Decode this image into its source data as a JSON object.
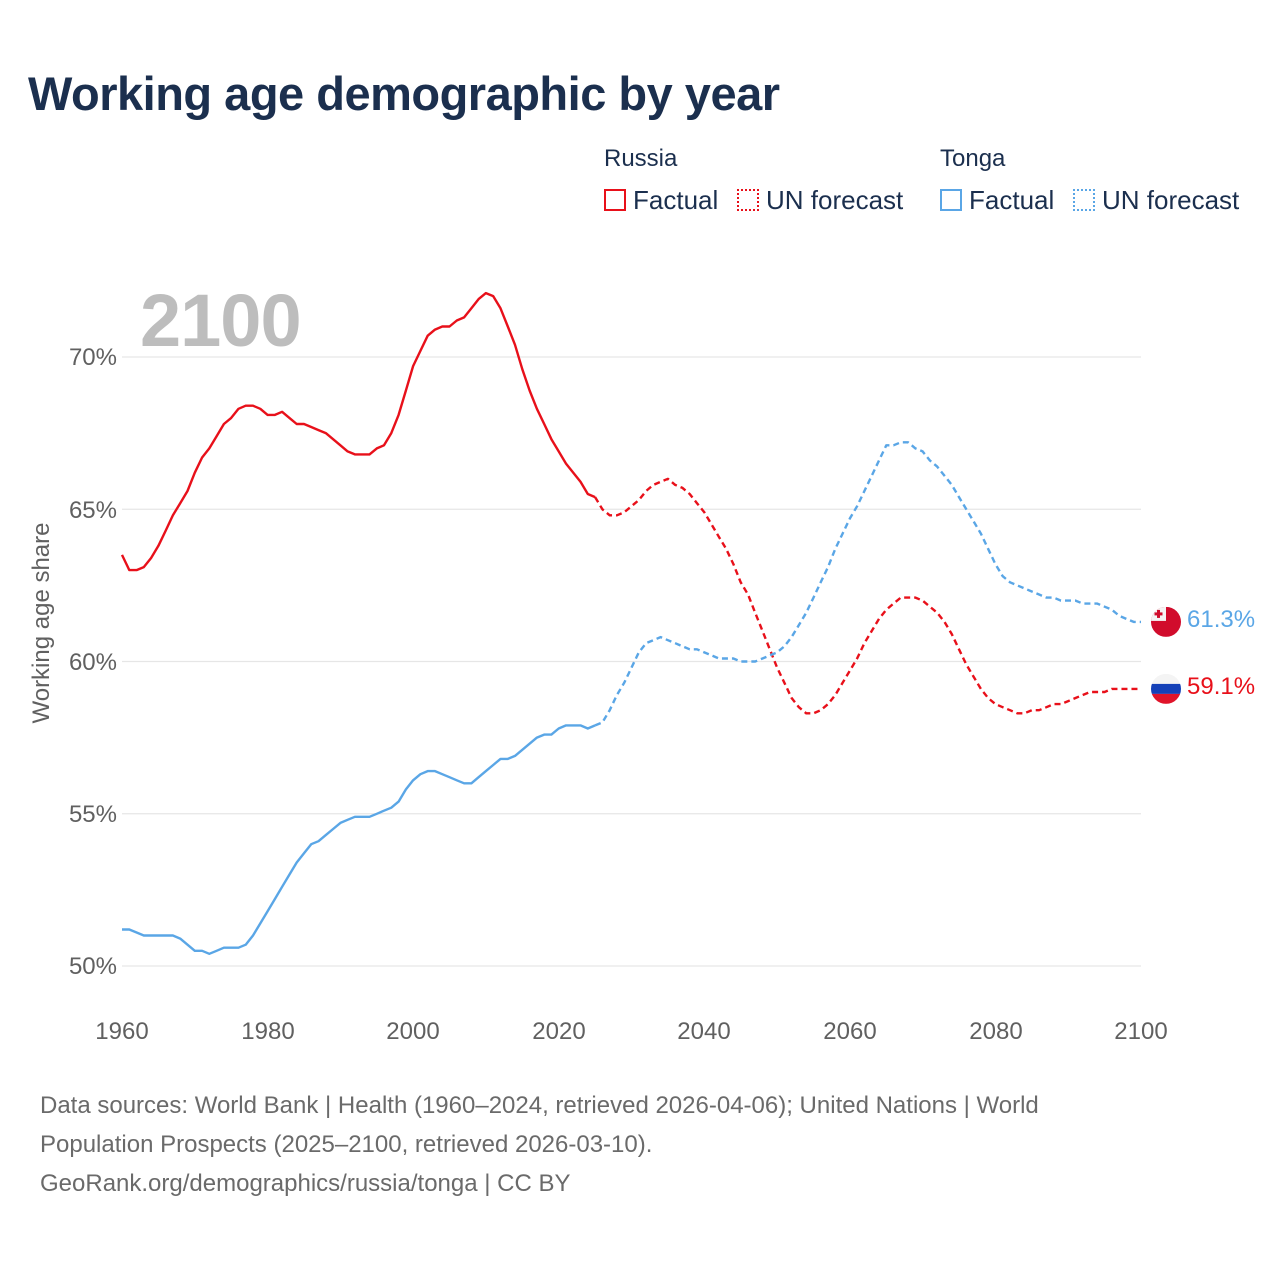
{
  "title": "Working age demographic by year",
  "legend": {
    "groups": [
      {
        "name": "Russia",
        "color": "#e8101a",
        "items": [
          "Factual",
          "UN forecast"
        ]
      },
      {
        "name": "Tonga",
        "color": "#5aa6e6",
        "items": [
          "Factual",
          "UN forecast"
        ]
      }
    ]
  },
  "year_label": "2100",
  "footer": {
    "line1": "Data sources: World Bank | Health (1960–2024, retrieved 2026-04-06); United Nations | World",
    "line2": "Population Prospects (2025–2100, retrieved 2026-03-10).",
    "line3": "GeoRank.org/demographics/russia/tonga | CC BY"
  },
  "chart_data": {
    "type": "line",
    "title": "Working age demographic by year",
    "xlabel": "",
    "ylabel": "Working age share",
    "xlim": [
      1960,
      2100
    ],
    "ylim": [
      50,
      70
    ],
    "x_ticks": [
      "1960",
      "1980",
      "2000",
      "2020",
      "2040",
      "2060",
      "2080",
      "2100"
    ],
    "y_ticks": [
      "50%",
      "55%",
      "60%",
      "65%",
      "70%"
    ],
    "forecast_start": 2025,
    "series": [
      {
        "name": "Russia",
        "color": "#e8101a",
        "end_label": "59.1%",
        "flag": "russia-flag-icon",
        "points": [
          [
            1960,
            63.5
          ],
          [
            1961,
            63.0
          ],
          [
            1962,
            63.0
          ],
          [
            1963,
            63.1
          ],
          [
            1964,
            63.4
          ],
          [
            1965,
            63.8
          ],
          [
            1966,
            64.3
          ],
          [
            1967,
            64.8
          ],
          [
            1968,
            65.2
          ],
          [
            1969,
            65.6
          ],
          [
            1970,
            66.2
          ],
          [
            1971,
            66.7
          ],
          [
            1972,
            67.0
          ],
          [
            1973,
            67.4
          ],
          [
            1974,
            67.8
          ],
          [
            1975,
            68.0
          ],
          [
            1976,
            68.3
          ],
          [
            1977,
            68.4
          ],
          [
            1978,
            68.4
          ],
          [
            1979,
            68.3
          ],
          [
            1980,
            68.1
          ],
          [
            1981,
            68.1
          ],
          [
            1982,
            68.2
          ],
          [
            1983,
            68.0
          ],
          [
            1984,
            67.8
          ],
          [
            1985,
            67.8
          ],
          [
            1986,
            67.7
          ],
          [
            1987,
            67.6
          ],
          [
            1988,
            67.5
          ],
          [
            1989,
            67.3
          ],
          [
            1990,
            67.1
          ],
          [
            1991,
            66.9
          ],
          [
            1992,
            66.8
          ],
          [
            1993,
            66.8
          ],
          [
            1994,
            66.8
          ],
          [
            1995,
            67.0
          ],
          [
            1996,
            67.1
          ],
          [
            1997,
            67.5
          ],
          [
            1998,
            68.1
          ],
          [
            1999,
            68.9
          ],
          [
            2000,
            69.7
          ],
          [
            2001,
            70.2
          ],
          [
            2002,
            70.7
          ],
          [
            2003,
            70.9
          ],
          [
            2004,
            71.0
          ],
          [
            2005,
            71.0
          ],
          [
            2006,
            71.2
          ],
          [
            2007,
            71.3
          ],
          [
            2008,
            71.6
          ],
          [
            2009,
            71.9
          ],
          [
            2010,
            72.1
          ],
          [
            2011,
            72.0
          ],
          [
            2012,
            71.6
          ],
          [
            2013,
            71.0
          ],
          [
            2014,
            70.4
          ],
          [
            2015,
            69.6
          ],
          [
            2016,
            68.9
          ],
          [
            2017,
            68.3
          ],
          [
            2018,
            67.8
          ],
          [
            2019,
            67.3
          ],
          [
            2020,
            66.9
          ],
          [
            2021,
            66.5
          ],
          [
            2022,
            66.2
          ],
          [
            2023,
            65.9
          ],
          [
            2024,
            65.5
          ],
          [
            2025,
            65.4
          ],
          [
            2026,
            65.0
          ],
          [
            2027,
            64.8
          ],
          [
            2028,
            64.8
          ],
          [
            2029,
            64.9
          ],
          [
            2030,
            65.1
          ],
          [
            2031,
            65.3
          ],
          [
            2032,
            65.6
          ],
          [
            2033,
            65.8
          ],
          [
            2034,
            65.9
          ],
          [
            2035,
            66.0
          ],
          [
            2036,
            65.8
          ],
          [
            2037,
            65.7
          ],
          [
            2038,
            65.5
          ],
          [
            2039,
            65.2
          ],
          [
            2040,
            64.9
          ],
          [
            2041,
            64.5
          ],
          [
            2042,
            64.1
          ],
          [
            2043,
            63.7
          ],
          [
            2044,
            63.2
          ],
          [
            2045,
            62.6
          ],
          [
            2046,
            62.2
          ],
          [
            2047,
            61.6
          ],
          [
            2048,
            61.0
          ],
          [
            2049,
            60.4
          ],
          [
            2050,
            59.8
          ],
          [
            2051,
            59.3
          ],
          [
            2052,
            58.8
          ],
          [
            2053,
            58.5
          ],
          [
            2054,
            58.3
          ],
          [
            2055,
            58.3
          ],
          [
            2056,
            58.4
          ],
          [
            2057,
            58.6
          ],
          [
            2058,
            58.9
          ],
          [
            2059,
            59.3
          ],
          [
            2060,
            59.7
          ],
          [
            2061,
            60.1
          ],
          [
            2062,
            60.6
          ],
          [
            2063,
            61.0
          ],
          [
            2064,
            61.4
          ],
          [
            2065,
            61.7
          ],
          [
            2066,
            61.9
          ],
          [
            2067,
            62.1
          ],
          [
            2068,
            62.1
          ],
          [
            2069,
            62.1
          ],
          [
            2070,
            62.0
          ],
          [
            2071,
            61.8
          ],
          [
            2072,
            61.6
          ],
          [
            2073,
            61.3
          ],
          [
            2074,
            60.9
          ],
          [
            2075,
            60.4
          ],
          [
            2076,
            59.9
          ],
          [
            2077,
            59.5
          ],
          [
            2078,
            59.1
          ],
          [
            2079,
            58.8
          ],
          [
            2080,
            58.6
          ],
          [
            2081,
            58.5
          ],
          [
            2082,
            58.4
          ],
          [
            2083,
            58.3
          ],
          [
            2084,
            58.3
          ],
          [
            2085,
            58.4
          ],
          [
            2086,
            58.4
          ],
          [
            2087,
            58.5
          ],
          [
            2088,
            58.6
          ],
          [
            2089,
            58.6
          ],
          [
            2090,
            58.7
          ],
          [
            2091,
            58.8
          ],
          [
            2092,
            58.9
          ],
          [
            2093,
            59.0
          ],
          [
            2094,
            59.0
          ],
          [
            2095,
            59.0
          ],
          [
            2096,
            59.1
          ],
          [
            2097,
            59.1
          ],
          [
            2098,
            59.1
          ],
          [
            2099,
            59.1
          ],
          [
            2100,
            59.1
          ]
        ]
      },
      {
        "name": "Tonga",
        "color": "#5aa6e6",
        "end_label": "61.3%",
        "flag": "tonga-flag-icon",
        "points": [
          [
            1960,
            51.2
          ],
          [
            1961,
            51.2
          ],
          [
            1962,
            51.1
          ],
          [
            1963,
            51.0
          ],
          [
            1964,
            51.0
          ],
          [
            1965,
            51.0
          ],
          [
            1966,
            51.0
          ],
          [
            1967,
            51.0
          ],
          [
            1968,
            50.9
          ],
          [
            1969,
            50.7
          ],
          [
            1970,
            50.5
          ],
          [
            1971,
            50.5
          ],
          [
            1972,
            50.4
          ],
          [
            1973,
            50.5
          ],
          [
            1974,
            50.6
          ],
          [
            1975,
            50.6
          ],
          [
            1976,
            50.6
          ],
          [
            1977,
            50.7
          ],
          [
            1978,
            51.0
          ],
          [
            1979,
            51.4
          ],
          [
            1980,
            51.8
          ],
          [
            1981,
            52.2
          ],
          [
            1982,
            52.6
          ],
          [
            1983,
            53.0
          ],
          [
            1984,
            53.4
          ],
          [
            1985,
            53.7
          ],
          [
            1986,
            54.0
          ],
          [
            1987,
            54.1
          ],
          [
            1988,
            54.3
          ],
          [
            1989,
            54.5
          ],
          [
            1990,
            54.7
          ],
          [
            1991,
            54.8
          ],
          [
            1992,
            54.9
          ],
          [
            1993,
            54.9
          ],
          [
            1994,
            54.9
          ],
          [
            1995,
            55.0
          ],
          [
            1996,
            55.1
          ],
          [
            1997,
            55.2
          ],
          [
            1998,
            55.4
          ],
          [
            1999,
            55.8
          ],
          [
            2000,
            56.1
          ],
          [
            2001,
            56.3
          ],
          [
            2002,
            56.4
          ],
          [
            2003,
            56.4
          ],
          [
            2004,
            56.3
          ],
          [
            2005,
            56.2
          ],
          [
            2006,
            56.1
          ],
          [
            2007,
            56.0
          ],
          [
            2008,
            56.0
          ],
          [
            2009,
            56.2
          ],
          [
            2010,
            56.4
          ],
          [
            2011,
            56.6
          ],
          [
            2012,
            56.8
          ],
          [
            2013,
            56.8
          ],
          [
            2014,
            56.9
          ],
          [
            2015,
            57.1
          ],
          [
            2016,
            57.3
          ],
          [
            2017,
            57.5
          ],
          [
            2018,
            57.6
          ],
          [
            2019,
            57.6
          ],
          [
            2020,
            57.8
          ],
          [
            2021,
            57.9
          ],
          [
            2022,
            57.9
          ],
          [
            2023,
            57.9
          ],
          [
            2024,
            57.8
          ],
          [
            2025,
            57.9
          ],
          [
            2026,
            58.0
          ],
          [
            2027,
            58.4
          ],
          [
            2028,
            58.9
          ],
          [
            2029,
            59.3
          ],
          [
            2030,
            59.8
          ],
          [
            2031,
            60.3
          ],
          [
            2032,
            60.6
          ],
          [
            2033,
            60.7
          ],
          [
            2034,
            60.8
          ],
          [
            2035,
            60.7
          ],
          [
            2036,
            60.6
          ],
          [
            2037,
            60.5
          ],
          [
            2038,
            60.4
          ],
          [
            2039,
            60.4
          ],
          [
            2040,
            60.3
          ],
          [
            2041,
            60.2
          ],
          [
            2042,
            60.1
          ],
          [
            2043,
            60.1
          ],
          [
            2044,
            60.1
          ],
          [
            2045,
            60.0
          ],
          [
            2046,
            60.0
          ],
          [
            2047,
            60.0
          ],
          [
            2048,
            60.1
          ],
          [
            2049,
            60.2
          ],
          [
            2050,
            60.3
          ],
          [
            2051,
            60.5
          ],
          [
            2052,
            60.8
          ],
          [
            2053,
            61.2
          ],
          [
            2054,
            61.6
          ],
          [
            2055,
            62.1
          ],
          [
            2056,
            62.6
          ],
          [
            2057,
            63.1
          ],
          [
            2058,
            63.7
          ],
          [
            2059,
            64.2
          ],
          [
            2060,
            64.7
          ],
          [
            2061,
            65.1
          ],
          [
            2062,
            65.6
          ],
          [
            2063,
            66.1
          ],
          [
            2064,
            66.6
          ],
          [
            2065,
            67.1
          ],
          [
            2066,
            67.1
          ],
          [
            2067,
            67.2
          ],
          [
            2068,
            67.2
          ],
          [
            2069,
            67.0
          ],
          [
            2070,
            66.9
          ],
          [
            2071,
            66.6
          ],
          [
            2072,
            66.4
          ],
          [
            2073,
            66.1
          ],
          [
            2074,
            65.8
          ],
          [
            2075,
            65.4
          ],
          [
            2076,
            65.0
          ],
          [
            2077,
            64.6
          ],
          [
            2078,
            64.2
          ],
          [
            2079,
            63.7
          ],
          [
            2080,
            63.2
          ],
          [
            2081,
            62.8
          ],
          [
            2082,
            62.6
          ],
          [
            2083,
            62.5
          ],
          [
            2084,
            62.4
          ],
          [
            2085,
            62.3
          ],
          [
            2086,
            62.2
          ],
          [
            2087,
            62.1
          ],
          [
            2088,
            62.1
          ],
          [
            2089,
            62.0
          ],
          [
            2090,
            62.0
          ],
          [
            2091,
            62.0
          ],
          [
            2092,
            61.9
          ],
          [
            2093,
            61.9
          ],
          [
            2094,
            61.9
          ],
          [
            2095,
            61.8
          ],
          [
            2096,
            61.7
          ],
          [
            2097,
            61.5
          ],
          [
            2098,
            61.4
          ],
          [
            2099,
            61.3
          ],
          [
            2100,
            61.3
          ]
        ]
      }
    ]
  }
}
